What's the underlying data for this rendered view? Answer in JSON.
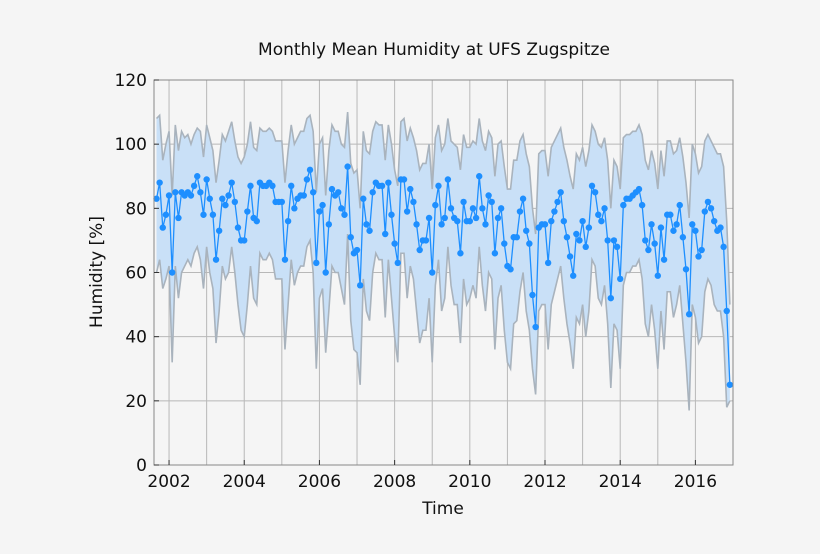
{
  "chart_data": {
    "type": "line",
    "title": "Monthly Mean Humidity at UFS Zugspitze",
    "xlabel": "Time",
    "ylabel": "Humidity [%]",
    "xlim": [
      2001.6,
      2017.0
    ],
    "ylim": [
      0,
      120
    ],
    "grid": true,
    "x_ticks": [
      "2002",
      "2004",
      "2006",
      "2008",
      "2010",
      "2012",
      "2014",
      "2016"
    ],
    "y_ticks": [
      "0",
      "20",
      "40",
      "60",
      "80",
      "100",
      "120"
    ],
    "colors": {
      "mean": "#1e8fff",
      "band_fill": "#c9e0f7",
      "band_edge": "#a9b3bd",
      "grid": "#b8b8b8",
      "background": "#f5f5f5"
    },
    "x": [
      "2001-09",
      "2001-10",
      "2001-11",
      "2001-12",
      "2002-01",
      "2002-02",
      "2002-03",
      "2002-04",
      "2002-05",
      "2002-06",
      "2002-07",
      "2002-08",
      "2002-09",
      "2002-10",
      "2002-11",
      "2002-12",
      "2003-01",
      "2003-02",
      "2003-03",
      "2003-04",
      "2003-05",
      "2003-06",
      "2003-07",
      "2003-08",
      "2003-09",
      "2003-10",
      "2003-11",
      "2003-12",
      "2004-01",
      "2004-02",
      "2004-03",
      "2004-04",
      "2004-05",
      "2004-06",
      "2004-07",
      "2004-08",
      "2004-09",
      "2004-10",
      "2004-11",
      "2004-12",
      "2005-01",
      "2005-02",
      "2005-03",
      "2005-04",
      "2005-05",
      "2005-06",
      "2005-07",
      "2005-08",
      "2005-09",
      "2005-10",
      "2005-11",
      "2005-12",
      "2006-01",
      "2006-02",
      "2006-03",
      "2006-04",
      "2006-05",
      "2006-06",
      "2006-07",
      "2006-08",
      "2006-09",
      "2006-10",
      "2006-11",
      "2006-12",
      "2007-01",
      "2007-02",
      "2007-03",
      "2007-04",
      "2007-05",
      "2007-06",
      "2007-07",
      "2007-08",
      "2007-09",
      "2007-10",
      "2007-11",
      "2007-12",
      "2008-01",
      "2008-02",
      "2008-03",
      "2008-04",
      "2008-05",
      "2008-06",
      "2008-07",
      "2008-08",
      "2008-09",
      "2008-10",
      "2008-11",
      "2008-12",
      "2009-01",
      "2009-02",
      "2009-03",
      "2009-04",
      "2009-05",
      "2009-06",
      "2009-07",
      "2009-08",
      "2009-09",
      "2009-10",
      "2009-11",
      "2009-12",
      "2010-01",
      "2010-02",
      "2010-03",
      "2010-04",
      "2010-05",
      "2010-06",
      "2010-07",
      "2010-08",
      "2010-09",
      "2010-10",
      "2010-11",
      "2010-12",
      "2011-01",
      "2011-02",
      "2011-03",
      "2011-04",
      "2011-05",
      "2011-06",
      "2011-07",
      "2011-08",
      "2011-09",
      "2011-10",
      "2011-11",
      "2011-12",
      "2012-01",
      "2012-02",
      "2012-03",
      "2012-04",
      "2012-05",
      "2012-06",
      "2012-07",
      "2012-08",
      "2012-09",
      "2012-10",
      "2012-11",
      "2012-12",
      "2013-01",
      "2013-02",
      "2013-03",
      "2013-04",
      "2013-05",
      "2013-06",
      "2013-07",
      "2013-08",
      "2013-09",
      "2013-10",
      "2013-11",
      "2013-12",
      "2014-01",
      "2014-02",
      "2014-03",
      "2014-04",
      "2014-05",
      "2014-06",
      "2014-07",
      "2014-08",
      "2014-09",
      "2014-10",
      "2014-11",
      "2014-12",
      "2015-01",
      "2015-02",
      "2015-03",
      "2015-04",
      "2015-05",
      "2015-06",
      "2015-07",
      "2015-08",
      "2015-09",
      "2015-10",
      "2015-11",
      "2015-12",
      "2016-01",
      "2016-02",
      "2016-03",
      "2016-04",
      "2016-05",
      "2016-06",
      "2016-07",
      "2016-08",
      "2016-09",
      "2016-10",
      "2016-11",
      "2016-12"
    ],
    "series": [
      {
        "role": "mean",
        "values": [
          83,
          88,
          74,
          78,
          84,
          60,
          85,
          77,
          85,
          84,
          85,
          84,
          87,
          90,
          85,
          78,
          89,
          83,
          78,
          64,
          73,
          83,
          81,
          84,
          88,
          82,
          74,
          70,
          70,
          79,
          87,
          77,
          76,
          88,
          87,
          87,
          88,
          87,
          82,
          82,
          82,
          64,
          76,
          87,
          80,
          83,
          84,
          84,
          89,
          92,
          85,
          63,
          79,
          81,
          60,
          75,
          86,
          84,
          85,
          80,
          78,
          93,
          71,
          66,
          67,
          56,
          83,
          75,
          73,
          85,
          88,
          87,
          87,
          72,
          88,
          78,
          69,
          63,
          89,
          89,
          79,
          86,
          82,
          75,
          67,
          70,
          70,
          77,
          60,
          81,
          87,
          75,
          77,
          89,
          80,
          77,
          76,
          66,
          82,
          76,
          76,
          80,
          77,
          90,
          80,
          75,
          84,
          82,
          66,
          77,
          80,
          69,
          62,
          61,
          71,
          71,
          79,
          83,
          73,
          69,
          53,
          43,
          74,
          75,
          75,
          63,
          76,
          79,
          82,
          85,
          76,
          71,
          65,
          59,
          72,
          70,
          76,
          68,
          74,
          87,
          85,
          78,
          76,
          80,
          70,
          52,
          70,
          68,
          58,
          81,
          83,
          83,
          84,
          85,
          86,
          81,
          70,
          67,
          75,
          69,
          59,
          74,
          64,
          78,
          78,
          73,
          75,
          81,
          71,
          61,
          47,
          75,
          73,
          65,
          67,
          79,
          82,
          80,
          76,
          73,
          74,
          68,
          48,
          25
        ]
      },
      {
        "role": "upper",
        "values": [
          108,
          109,
          95,
          100,
          104,
          84,
          106,
          98,
          104,
          102,
          103,
          100,
          103,
          105,
          104,
          96,
          106,
          102,
          98,
          88,
          95,
          103,
          101,
          104,
          107,
          101,
          96,
          94,
          96,
          100,
          107,
          99,
          98,
          105,
          104,
          104,
          105,
          104,
          101,
          101,
          101,
          88,
          98,
          106,
          100,
          102,
          104,
          104,
          108,
          109,
          104,
          85,
          100,
          102,
          84,
          98,
          106,
          104,
          104,
          100,
          99,
          110,
          94,
          91,
          92,
          80,
          104,
          98,
          97,
          104,
          107,
          106,
          106,
          95,
          106,
          100,
          92,
          87,
          107,
          108,
          101,
          105,
          102,
          98,
          92,
          94,
          94,
          100,
          86,
          102,
          106,
          98,
          100,
          108,
          101,
          100,
          99,
          92,
          103,
          99,
          99,
          101,
          100,
          108,
          101,
          98,
          104,
          102,
          90,
          100,
          101,
          93,
          86,
          86,
          95,
          95,
          101,
          103,
          97,
          93,
          80,
          72,
          97,
          98,
          98,
          90,
          99,
          101,
          103,
          105,
          99,
          95,
          90,
          86,
          97,
          95,
          99,
          93,
          98,
          106,
          104,
          100,
          99,
          102,
          95,
          80,
          95,
          93,
          86,
          102,
          103,
          103,
          104,
          104,
          106,
          103,
          95,
          92,
          98,
          94,
          86,
          98,
          90,
          101,
          101,
          97,
          98,
          102,
          96,
          88,
          77,
          100,
          97,
          91,
          93,
          101,
          103,
          101,
          99,
          97,
          97,
          93,
          76,
          50
        ]
      },
      {
        "role": "lower",
        "values": [
          60,
          64,
          55,
          58,
          62,
          32,
          62,
          52,
          60,
          62,
          64,
          62,
          66,
          68,
          64,
          55,
          68,
          60,
          55,
          38,
          48,
          62,
          58,
          60,
          68,
          60,
          50,
          42,
          40,
          50,
          62,
          52,
          50,
          66,
          64,
          64,
          66,
          64,
          58,
          58,
          58,
          36,
          50,
          64,
          56,
          60,
          62,
          62,
          68,
          70,
          60,
          30,
          52,
          55,
          35,
          48,
          62,
          60,
          60,
          55,
          50,
          72,
          45,
          36,
          35,
          25,
          58,
          48,
          45,
          60,
          66,
          64,
          64,
          46,
          64,
          52,
          40,
          32,
          66,
          66,
          52,
          62,
          58,
          48,
          38,
          42,
          42,
          52,
          32,
          56,
          64,
          48,
          52,
          68,
          56,
          50,
          50,
          38,
          58,
          50,
          52,
          56,
          52,
          68,
          56,
          48,
          60,
          58,
          36,
          52,
          56,
          42,
          32,
          30,
          44,
          45,
          54,
          60,
          48,
          42,
          30,
          22,
          48,
          50,
          50,
          36,
          50,
          54,
          58,
          62,
          52,
          44,
          38,
          30,
          46,
          44,
          50,
          40,
          48,
          64,
          62,
          52,
          50,
          56,
          44,
          24,
          44,
          42,
          30,
          56,
          60,
          60,
          62,
          62,
          64,
          58,
          44,
          40,
          50,
          42,
          30,
          48,
          36,
          54,
          54,
          46,
          50,
          56,
          44,
          32,
          17,
          50,
          46,
          38,
          40,
          54,
          58,
          56,
          50,
          48,
          48,
          40,
          18,
          20
        ]
      }
    ]
  }
}
